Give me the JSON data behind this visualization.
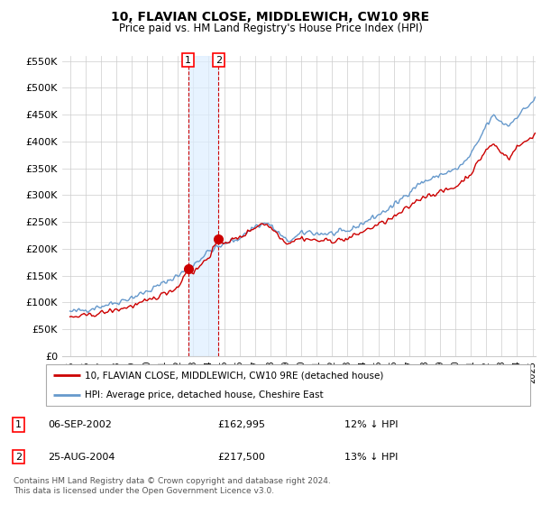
{
  "title": "10, FLAVIAN CLOSE, MIDDLEWICH, CW10 9RE",
  "subtitle": "Price paid vs. HM Land Registry's House Price Index (HPI)",
  "legend_line1": "10, FLAVIAN CLOSE, MIDDLEWICH, CW10 9RE (detached house)",
  "legend_line2": "HPI: Average price, detached house, Cheshire East",
  "sale1_date": "06-SEP-2002",
  "sale1_price": 162995,
  "sale2_date": "25-AUG-2004",
  "sale2_price": 217500,
  "sale1_pct": "12% ↓ HPI",
  "sale2_pct": "13% ↓ HPI",
  "footnote": "Contains HM Land Registry data © Crown copyright and database right 2024.\nThis data is licensed under the Open Government Licence v3.0.",
  "line_color_red": "#cc0000",
  "line_color_blue": "#6699cc",
  "shade_color": "#ddeeff",
  "ylim": [
    0,
    560000
  ],
  "yticks": [
    0,
    50000,
    100000,
    150000,
    200000,
    250000,
    300000,
    350000,
    400000,
    450000,
    500000,
    550000
  ],
  "background_color": "#ffffff",
  "grid_color": "#cccccc",
  "sale1_x": 2002.67,
  "sale2_x": 2004.64,
  "vline1_x": 2002.67,
  "vline2_x": 2004.64,
  "xmin": 1995.0,
  "xmax": 2025.2
}
